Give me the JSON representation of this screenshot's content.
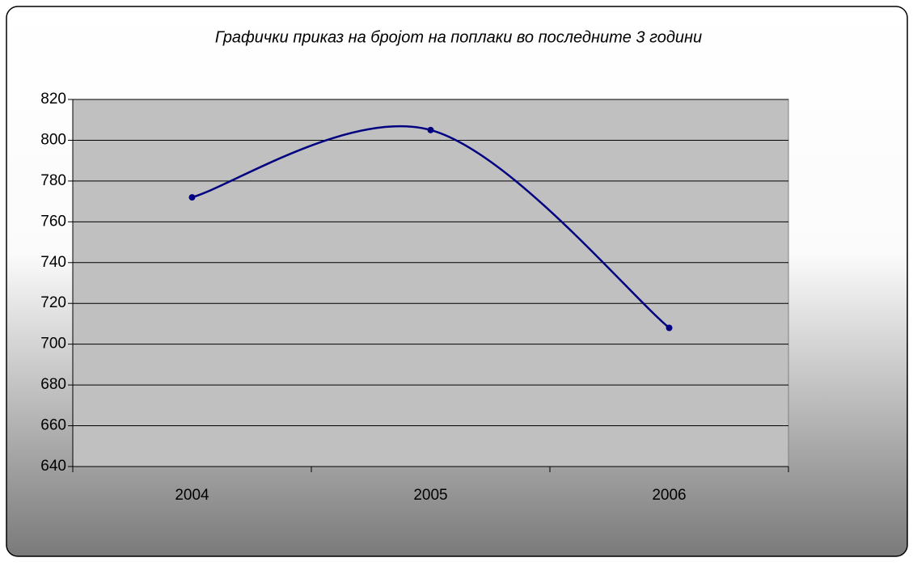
{
  "chart_data": {
    "type": "line",
    "title": "Графички приказ на бројот на поплаки во последните 3 години",
    "categories": [
      "2004",
      "2005",
      "2006"
    ],
    "values": [
      772,
      805,
      708
    ],
    "color": "#000080",
    "smooth": true,
    "ylim": [
      640,
      820
    ],
    "yticks": [
      640,
      660,
      680,
      700,
      720,
      740,
      760,
      780,
      800,
      820
    ],
    "grid": true
  }
}
